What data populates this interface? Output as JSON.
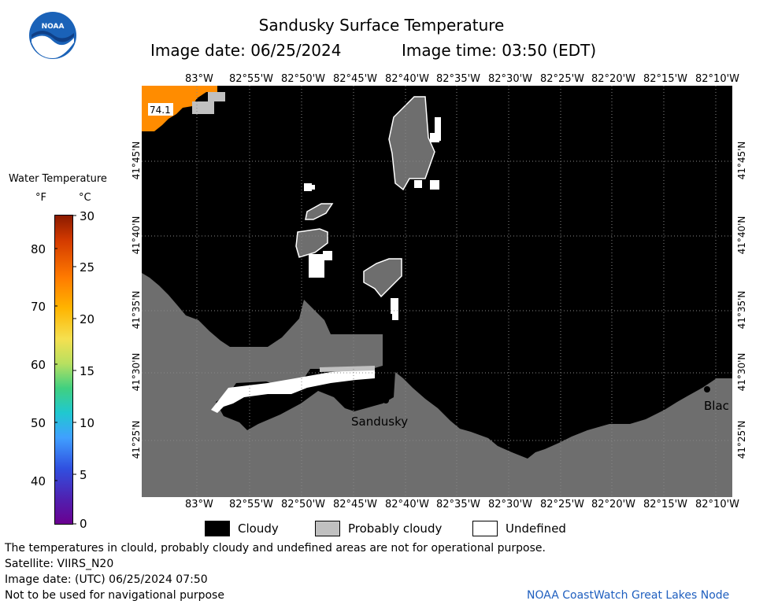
{
  "header": {
    "logo_text": "NOAA",
    "title": "Sandusky Surface Temperature",
    "image_date": "Image date: 06/25/2024",
    "image_time": "Image time: 03:50 (EDT)"
  },
  "colorbar": {
    "title": "Water Temperature",
    "unit_f": "°F",
    "unit_c": "°C",
    "f_ticks": [
      "80",
      "70",
      "60",
      "50",
      "40"
    ],
    "c_ticks": [
      "30",
      "25",
      "20",
      "15",
      "10",
      "5",
      "0"
    ]
  },
  "map": {
    "lon_labels": [
      "83°W",
      "82°55'W",
      "82°50'W",
      "82°45'W",
      "82°40'W",
      "82°35'W",
      "82°30'W",
      "82°25'W",
      "82°20'W",
      "82°15'W",
      "82°10'W"
    ],
    "lat_labels": [
      "41°45'N",
      "41°40'N",
      "41°35'N",
      "41°30'N",
      "41°25'N"
    ],
    "place_sandusky": "Sandusky",
    "place_black": "Blac",
    "temp_label": "74.1"
  },
  "legend": {
    "cloudy": "Cloudy",
    "probably_cloudy": "Probably cloudy",
    "undefined": "Undefined"
  },
  "footer": {
    "disclaimer": "The temperatures in clould, probably cloudy and undefined areas are not for operational purpose.",
    "satellite": "Satellite: VIIRS_N20",
    "utc_date": "Image date: (UTC) 06/25/2024  07:50",
    "nav_warning": "Not to be used for navigational purpose",
    "credit": "NOAA CoastWatch Great Lakes Node"
  },
  "colors": {
    "cloudy": "#000000",
    "probably_cloudy": "#c0c0c0",
    "land": "#6e6e6e",
    "warm_water": "#ff8c00",
    "credit": "#1f5fbf"
  }
}
